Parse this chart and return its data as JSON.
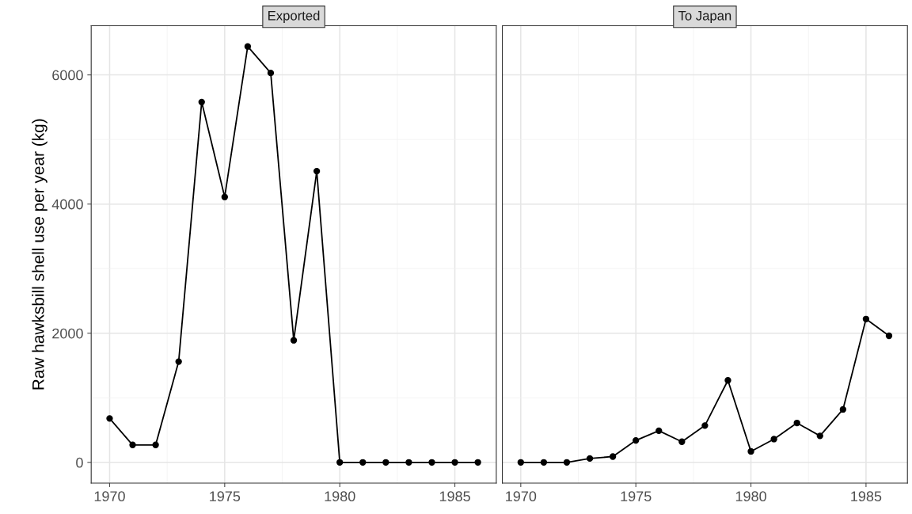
{
  "chart_data": [
    {
      "type": "line",
      "title": "Exported",
      "ylabel": "Raw hawksbill shell use per year (kg)",
      "x": [
        1970,
        1971,
        1972,
        1973,
        1974,
        1975,
        1976,
        1977,
        1978,
        1979,
        1980,
        1981,
        1982,
        1983,
        1984,
        1985,
        1986
      ],
      "series": [
        {
          "color": "#000000",
          "values": [
            680,
            270,
            270,
            1560,
            5580,
            4110,
            6440,
            6030,
            1890,
            4510,
            0,
            0,
            0,
            0,
            0,
            0,
            0
          ]
        }
      ],
      "xlim": [
        1969.2,
        1986.8
      ],
      "xticks": [
        1970,
        1975,
        1980,
        1985
      ],
      "ylim": [
        -322,
        6762
      ],
      "yticks": [
        0,
        2000,
        4000,
        6000
      ],
      "grid": true,
      "marker": "circle",
      "line_style": "solid"
    },
    {
      "type": "line",
      "title": "To Japan",
      "x": [
        1970,
        1971,
        1972,
        1973,
        1974,
        1975,
        1976,
        1977,
        1978,
        1979,
        1980,
        1981,
        1982,
        1983,
        1984,
        1985,
        1986
      ],
      "series": [
        {
          "color": "#000000",
          "values": [
            0,
            0,
            0,
            60,
            90,
            340,
            490,
            320,
            570,
            1270,
            170,
            360,
            610,
            410,
            820,
            2220,
            1960
          ]
        }
      ],
      "xlim": [
        1969.2,
        1986.8
      ],
      "xticks": [
        1970,
        1975,
        1980,
        1985
      ],
      "ylim": [
        -322,
        6762
      ],
      "yticks": [
        0,
        2000,
        4000,
        6000
      ],
      "grid": true,
      "marker": "circle",
      "line_style": "solid",
      "tick_labels": "x"
    }
  ]
}
